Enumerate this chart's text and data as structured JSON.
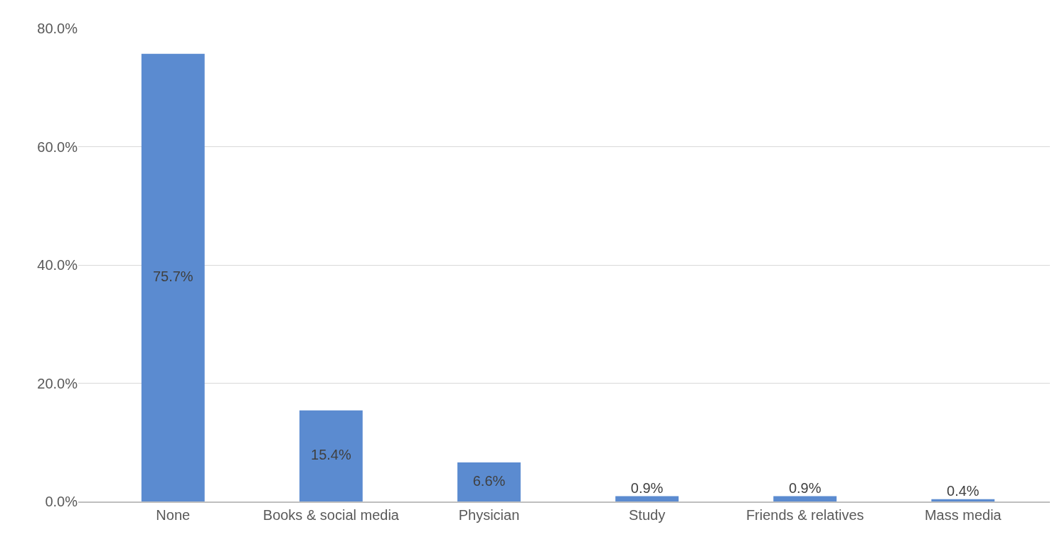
{
  "chart_data": {
    "type": "bar",
    "categories": [
      "None",
      "Books & social media",
      "Physician",
      "Study",
      "Friends & relatives",
      "Mass media"
    ],
    "values": [
      75.7,
      15.4,
      6.6,
      0.9,
      0.9,
      0.4
    ],
    "value_labels": [
      "75.7%",
      "15.4%",
      "6.6%",
      "0.9%",
      "0.9%",
      "0.4%"
    ],
    "color": "#5b8bd0",
    "ylim": [
      0,
      80
    ],
    "yticks": [
      {
        "value": 0,
        "label": "0.0%"
      },
      {
        "value": 20,
        "label": "20.0%"
      },
      {
        "value": 40,
        "label": "40.0%"
      },
      {
        "value": 60,
        "label": "60.0%"
      },
      {
        "value": 80,
        "label": "80.0%"
      }
    ],
    "grid": "y"
  }
}
